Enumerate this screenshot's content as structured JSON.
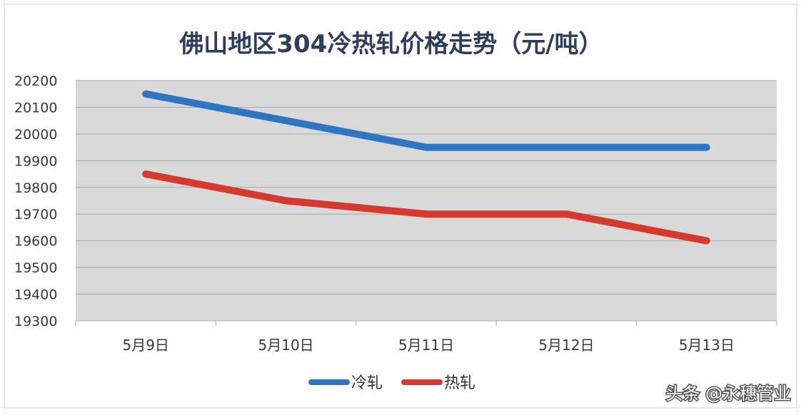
{
  "chart_data": {
    "type": "line",
    "title": "佛山地区304冷热轧价格走势（元/吨）",
    "categories": [
      "5月9日",
      "5月10日",
      "5月11日",
      "5月12日",
      "5月13日"
    ],
    "series": [
      {
        "name": "冷轧",
        "values": [
          20150,
          20050,
          19950,
          19950,
          19950
        ],
        "color": "#2e75c2"
      },
      {
        "name": "热轧",
        "values": [
          19850,
          19750,
          19700,
          19700,
          19600
        ],
        "color": "#d63a2e"
      }
    ],
    "ylim": [
      19300,
      20200
    ],
    "yticks": [
      20200,
      20100,
      20000,
      19900,
      19800,
      19700,
      19600,
      19500,
      19400,
      19300
    ],
    "grid": true,
    "legend": "bottom"
  },
  "watermark": "头条 @永穗管业",
  "colors": {
    "plot_bg": "#d9d9d9",
    "grid": "#a6a6a6",
    "title": "#2f3e5c"
  }
}
